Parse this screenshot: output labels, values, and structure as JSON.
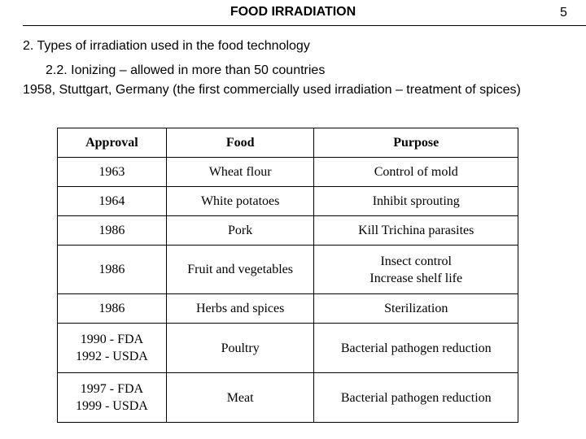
{
  "header": {
    "title": "FOOD IRRADIATION",
    "page_number": "5"
  },
  "content": {
    "section": "2. Types of irradiation used in the food technology",
    "subsection": "2.2. Ionizing – allowed in more than 50 countries",
    "history": "1958, Stuttgart, Germany (the first commercially used irradiation – treatment of spices)"
  },
  "table": {
    "headers": [
      "Approval",
      "Food",
      "Purpose"
    ],
    "rows": [
      {
        "approval": [
          "1963"
        ],
        "food": [
          "Wheat flour"
        ],
        "purpose": [
          "Control of mold"
        ]
      },
      {
        "approval": [
          "1964"
        ],
        "food": [
          "White potatoes"
        ],
        "purpose": [
          "Inhibit sprouting"
        ]
      },
      {
        "approval": [
          "1986"
        ],
        "food": [
          "Pork"
        ],
        "purpose": [
          "Kill Trichina parasites"
        ]
      },
      {
        "approval": [
          "1986"
        ],
        "food": [
          "Fruit and vegetables"
        ],
        "purpose": [
          "Insect control",
          "Increase shelf life"
        ]
      },
      {
        "approval": [
          "1986"
        ],
        "food": [
          "Herbs and spices"
        ],
        "purpose": [
          "Sterilization"
        ]
      },
      {
        "approval": [
          "1990 - FDA",
          "1992 - USDA"
        ],
        "food": [
          "Poultry"
        ],
        "purpose": [
          "Bacterial pathogen reduction"
        ]
      },
      {
        "approval": [
          "1997 - FDA",
          "1999 - USDA"
        ],
        "food": [
          "Meat"
        ],
        "purpose": [
          "Bacterial pathogen reduction"
        ]
      }
    ]
  }
}
